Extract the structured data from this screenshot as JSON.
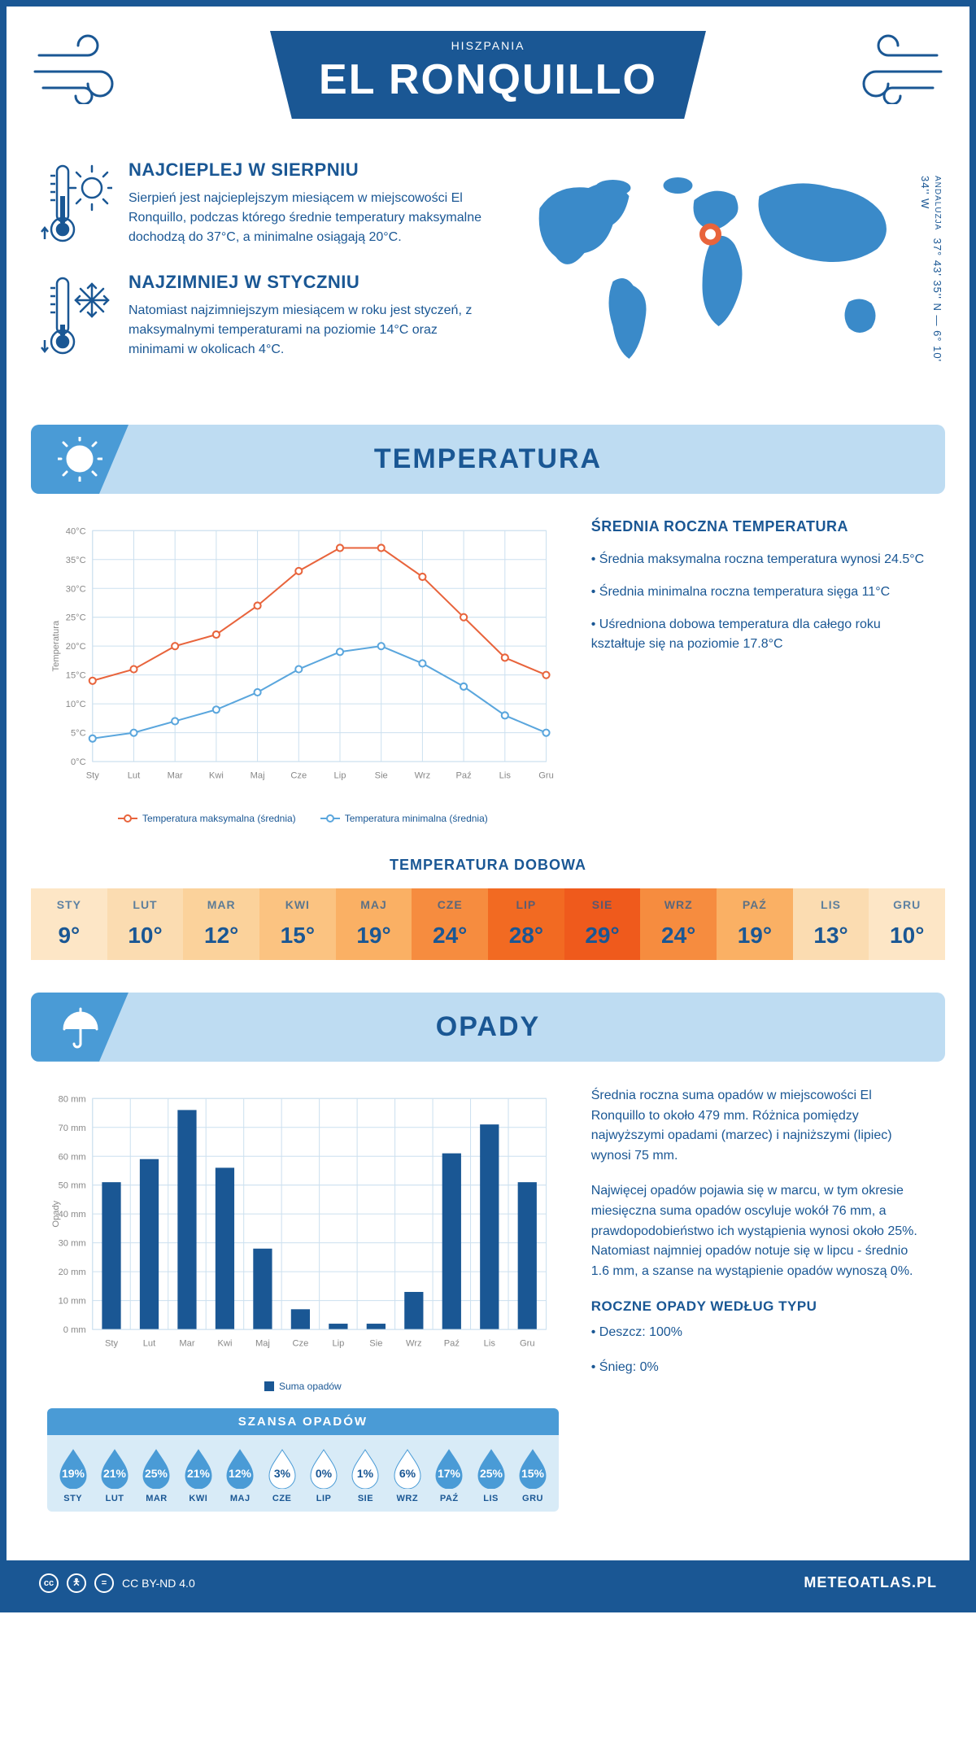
{
  "header": {
    "title": "EL RONQUILLO",
    "country": "HISZPANIA"
  },
  "coords": {
    "region": "ANDALUZJA",
    "text": "37° 43' 35'' N — 6° 10' 34'' W"
  },
  "facts": {
    "hot": {
      "title": "NAJCIEPLEJ W SIERPNIU",
      "text": "Sierpień jest najcieplejszym miesiącem w miejscowości El Ronquillo, podczas którego średnie temperatury maksymalne dochodzą do 37°C, a minimalne osiągają 20°C."
    },
    "cold": {
      "title": "NAJZIMNIEJ W STYCZNIU",
      "text": "Natomiast najzimniejszym miesiącem w roku jest styczeń, z maksymalnymi temperaturami na poziomie 14°C oraz minimami w okolicach 4°C."
    }
  },
  "sections": {
    "temperature": "TEMPERATURA",
    "precip": "OPADY"
  },
  "months_short": [
    "Sty",
    "Lut",
    "Mar",
    "Kwi",
    "Maj",
    "Cze",
    "Lip",
    "Sie",
    "Wrz",
    "Paź",
    "Lis",
    "Gru"
  ],
  "months_upper": [
    "STY",
    "LUT",
    "MAR",
    "KWI",
    "MAJ",
    "CZE",
    "LIP",
    "SIE",
    "WRZ",
    "PAŹ",
    "LIS",
    "GRU"
  ],
  "temp_chart": {
    "type": "line",
    "y_label": "Temperatura",
    "ylim": [
      0,
      40
    ],
    "ytick_step": 5,
    "ytick_suffix": "°C",
    "grid_color": "#cce0ef",
    "series": [
      {
        "name": "Temperatura maksymalna (średnia)",
        "color": "#e8643c",
        "values": [
          14,
          16,
          20,
          22,
          27,
          33,
          37,
          37,
          32,
          25,
          18,
          15
        ]
      },
      {
        "name": "Temperatura minimalna (średnia)",
        "color": "#5aa6dd",
        "values": [
          4,
          5,
          7,
          9,
          12,
          16,
          19,
          20,
          17,
          13,
          8,
          5
        ]
      }
    ],
    "line_width": 2,
    "marker_size": 4
  },
  "temp_side": {
    "heading": "ŚREDNIA ROCZNA TEMPERATURA",
    "bullets": [
      "• Średnia maksymalna roczna temperatura wynosi 24.5°C",
      "• Średnia minimalna roczna temperatura sięga 11°C",
      "• Uśredniona dobowa temperatura dla całego roku kształtuje się na poziomie 17.8°C"
    ]
  },
  "daily_temp": {
    "heading": "TEMPERATURA DOBOWA",
    "values": [
      9,
      10,
      12,
      15,
      19,
      24,
      28,
      29,
      24,
      19,
      13,
      10
    ],
    "colors": [
      "#fde6c6",
      "#fbdcb1",
      "#fbd29b",
      "#fbc381",
      "#fab064",
      "#f68c3f",
      "#f26a22",
      "#ef5a1c",
      "#f68c3f",
      "#fab064",
      "#fbdcb1",
      "#fde6c6"
    ]
  },
  "precip_chart": {
    "type": "bar",
    "y_label": "Opady",
    "ylim": [
      0,
      80
    ],
    "ytick_step": 10,
    "ytick_suffix": " mm",
    "grid_color": "#cce0ef",
    "bar_color": "#1a5794",
    "values": [
      51,
      59,
      76,
      56,
      28,
      7,
      2,
      2,
      13,
      61,
      71,
      51
    ],
    "legend": "Suma opadów"
  },
  "precip_text": {
    "p1": "Średnia roczna suma opadów w miejscowości El Ronquillo to około 479 mm. Różnica pomiędzy najwyższymi opadami (marzec) i najniższymi (lipiec) wynosi 75 mm.",
    "p2": "Najwięcej opadów pojawia się w marcu, w tym okresie miesięczna suma opadów oscyluje wokół 76 mm, a prawdopodobieństwo ich wystąpienia wynosi około 25%. Natomiast najmniej opadów notuje się w lipcu - średnio 1.6 mm, a szanse na wystąpienie opadów wynoszą 0%.",
    "type_heading": "ROCZNE OPADY WEDŁUG TYPU",
    "types": [
      "• Deszcz: 100%",
      "• Śnieg: 0%"
    ]
  },
  "chance": {
    "heading": "SZANSA OPADÓW",
    "values": [
      19,
      21,
      25,
      21,
      12,
      3,
      0,
      1,
      6,
      17,
      25,
      15
    ],
    "fill_color": "#4a9bd6",
    "empty_color": "#ffffff",
    "threshold_light": 10
  },
  "footer": {
    "license": "CC BY-ND 4.0",
    "brand": "METEOATLAS.PL"
  }
}
